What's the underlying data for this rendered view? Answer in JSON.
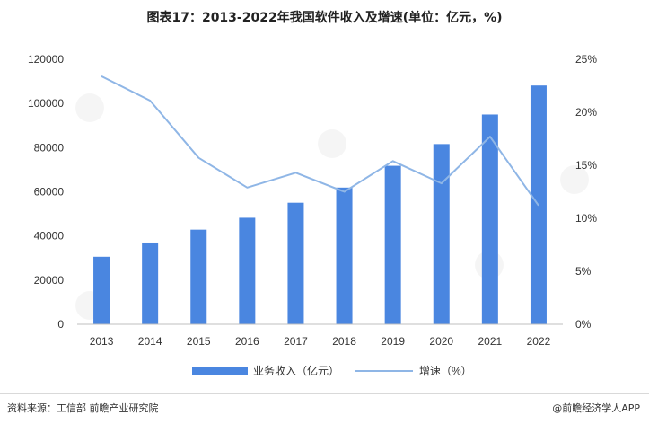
{
  "title": "图表17：2013-2022年我国软件收入及增速(单位：亿元，%)",
  "source": "资料来源：工信部 前瞻产业研究院",
  "brand": "@前瞻经济学人APP",
  "colors": {
    "bar": "#4a86e0",
    "line": "#8fb6e6",
    "axis": "#bfbfbf"
  },
  "chart_data": {
    "type": "bar",
    "title": "图表17：2013-2022年我国软件收入及增速(单位：亿元，%)",
    "categories": [
      "2013",
      "2014",
      "2015",
      "2016",
      "2017",
      "2018",
      "2019",
      "2020",
      "2021",
      "2022"
    ],
    "series": [
      {
        "name": "业务收入（亿元）",
        "type": "bar",
        "axis": "left",
        "values": [
          30587,
          37026,
          42848,
          48232,
          55037,
          61909,
          71768,
          81616,
          94994,
          108126
        ]
      },
      {
        "name": "增速（%）",
        "type": "line",
        "axis": "right",
        "values": [
          23.4,
          21.1,
          15.7,
          12.9,
          14.3,
          12.5,
          15.4,
          13.3,
          17.7,
          11.2
        ]
      }
    ],
    "left_axis": {
      "ylim": [
        0,
        120000
      ],
      "ticks": [
        "0",
        "20000",
        "40000",
        "60000",
        "80000",
        "100000",
        "120000"
      ]
    },
    "right_axis": {
      "ylim": [
        0,
        25
      ],
      "ticks": [
        "0%",
        "5%",
        "10%",
        "15%",
        "20%",
        "25%"
      ]
    },
    "grid": false,
    "legend_position": "bottom"
  }
}
